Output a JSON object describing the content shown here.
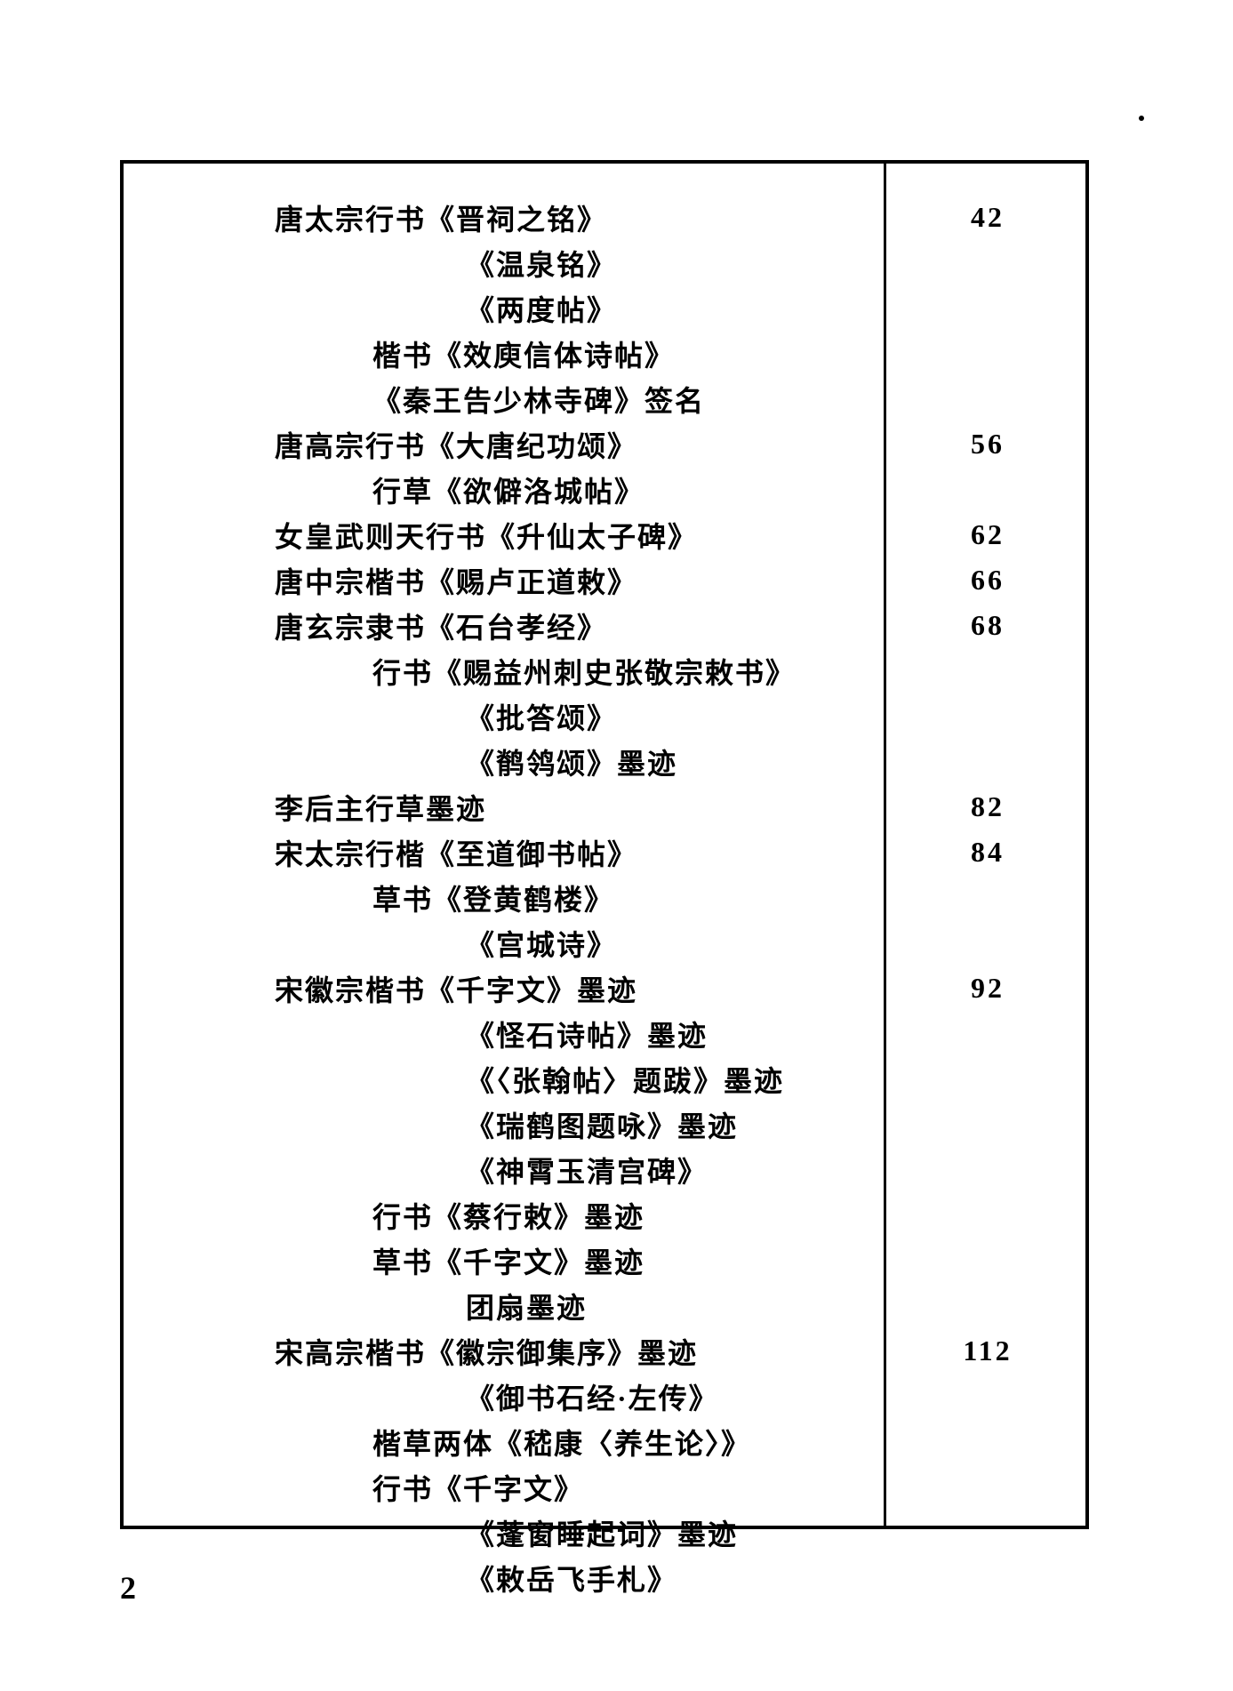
{
  "page": {
    "footer_page_number": "2",
    "border_color": "#000000",
    "background_color": "#ffffff",
    "text_color": "#000000",
    "font_size_pt": 24
  },
  "toc": {
    "rows": [
      {
        "text": "唐太宗行书《晋祠之铭》",
        "indent": 0,
        "page": "42"
      },
      {
        "text": "《温泉铭》",
        "indent": 2,
        "page": ""
      },
      {
        "text": "《两度帖》",
        "indent": 2,
        "page": ""
      },
      {
        "text": "楷书《效庾信体诗帖》",
        "indent": 1,
        "page": ""
      },
      {
        "text": "《秦王告少林寺碑》签名",
        "indent": 1,
        "page": ""
      },
      {
        "text": "唐高宗行书《大唐纪功颂》",
        "indent": 0,
        "page": "56"
      },
      {
        "text": "行草《欲僻洛城帖》",
        "indent": 1,
        "page": ""
      },
      {
        "text": "女皇武则天行书《升仙太子碑》",
        "indent": 0,
        "page": "62"
      },
      {
        "text": "唐中宗楷书《赐卢正道敕》",
        "indent": 0,
        "page": "66"
      },
      {
        "text": "唐玄宗隶书《石台孝经》",
        "indent": 0,
        "page": "68"
      },
      {
        "text": "行书《赐益州刺史张敬宗敕书》",
        "indent": 1,
        "page": ""
      },
      {
        "text": "《批答颂》",
        "indent": 2,
        "page": ""
      },
      {
        "text": "《鹡鸰颂》墨迹",
        "indent": 2,
        "page": ""
      },
      {
        "text": "李后主行草墨迹",
        "indent": 0,
        "page": "82"
      },
      {
        "text": "宋太宗行楷《至道御书帖》",
        "indent": 0,
        "page": "84"
      },
      {
        "text": "草书《登黄鹤楼》",
        "indent": 1,
        "page": ""
      },
      {
        "text": "《宫城诗》",
        "indent": 2,
        "page": ""
      },
      {
        "text": "宋徽宗楷书《千字文》墨迹",
        "indent": 0,
        "page": "92"
      },
      {
        "text": "《怪石诗帖》墨迹",
        "indent": 2,
        "page": ""
      },
      {
        "text": "《〈张翰帖〉题跋》墨迹",
        "indent": 2,
        "page": ""
      },
      {
        "text": "《瑞鹤图题咏》墨迹",
        "indent": 2,
        "page": ""
      },
      {
        "text": "《神霄玉清宫碑》",
        "indent": 2,
        "page": ""
      },
      {
        "text": "行书《蔡行敕》墨迹",
        "indent": 1,
        "page": ""
      },
      {
        "text": "草书《千字文》墨迹",
        "indent": 1,
        "page": ""
      },
      {
        "text": "团扇墨迹",
        "indent": 2,
        "page": ""
      },
      {
        "text": "宋高宗楷书《徽宗御集序》墨迹",
        "indent": 0,
        "page": "112"
      },
      {
        "text": "《御书石经·左传》",
        "indent": 2,
        "page": ""
      },
      {
        "text": "楷草两体《嵇康〈养生论〉》",
        "indent": 1,
        "page": ""
      },
      {
        "text": "行书《千字文》",
        "indent": 1,
        "page": ""
      },
      {
        "text": "《蓬窗睡起词》墨迹",
        "indent": 2,
        "page": ""
      },
      {
        "text": "《敕岳飞手札》",
        "indent": 2,
        "page": ""
      }
    ]
  }
}
